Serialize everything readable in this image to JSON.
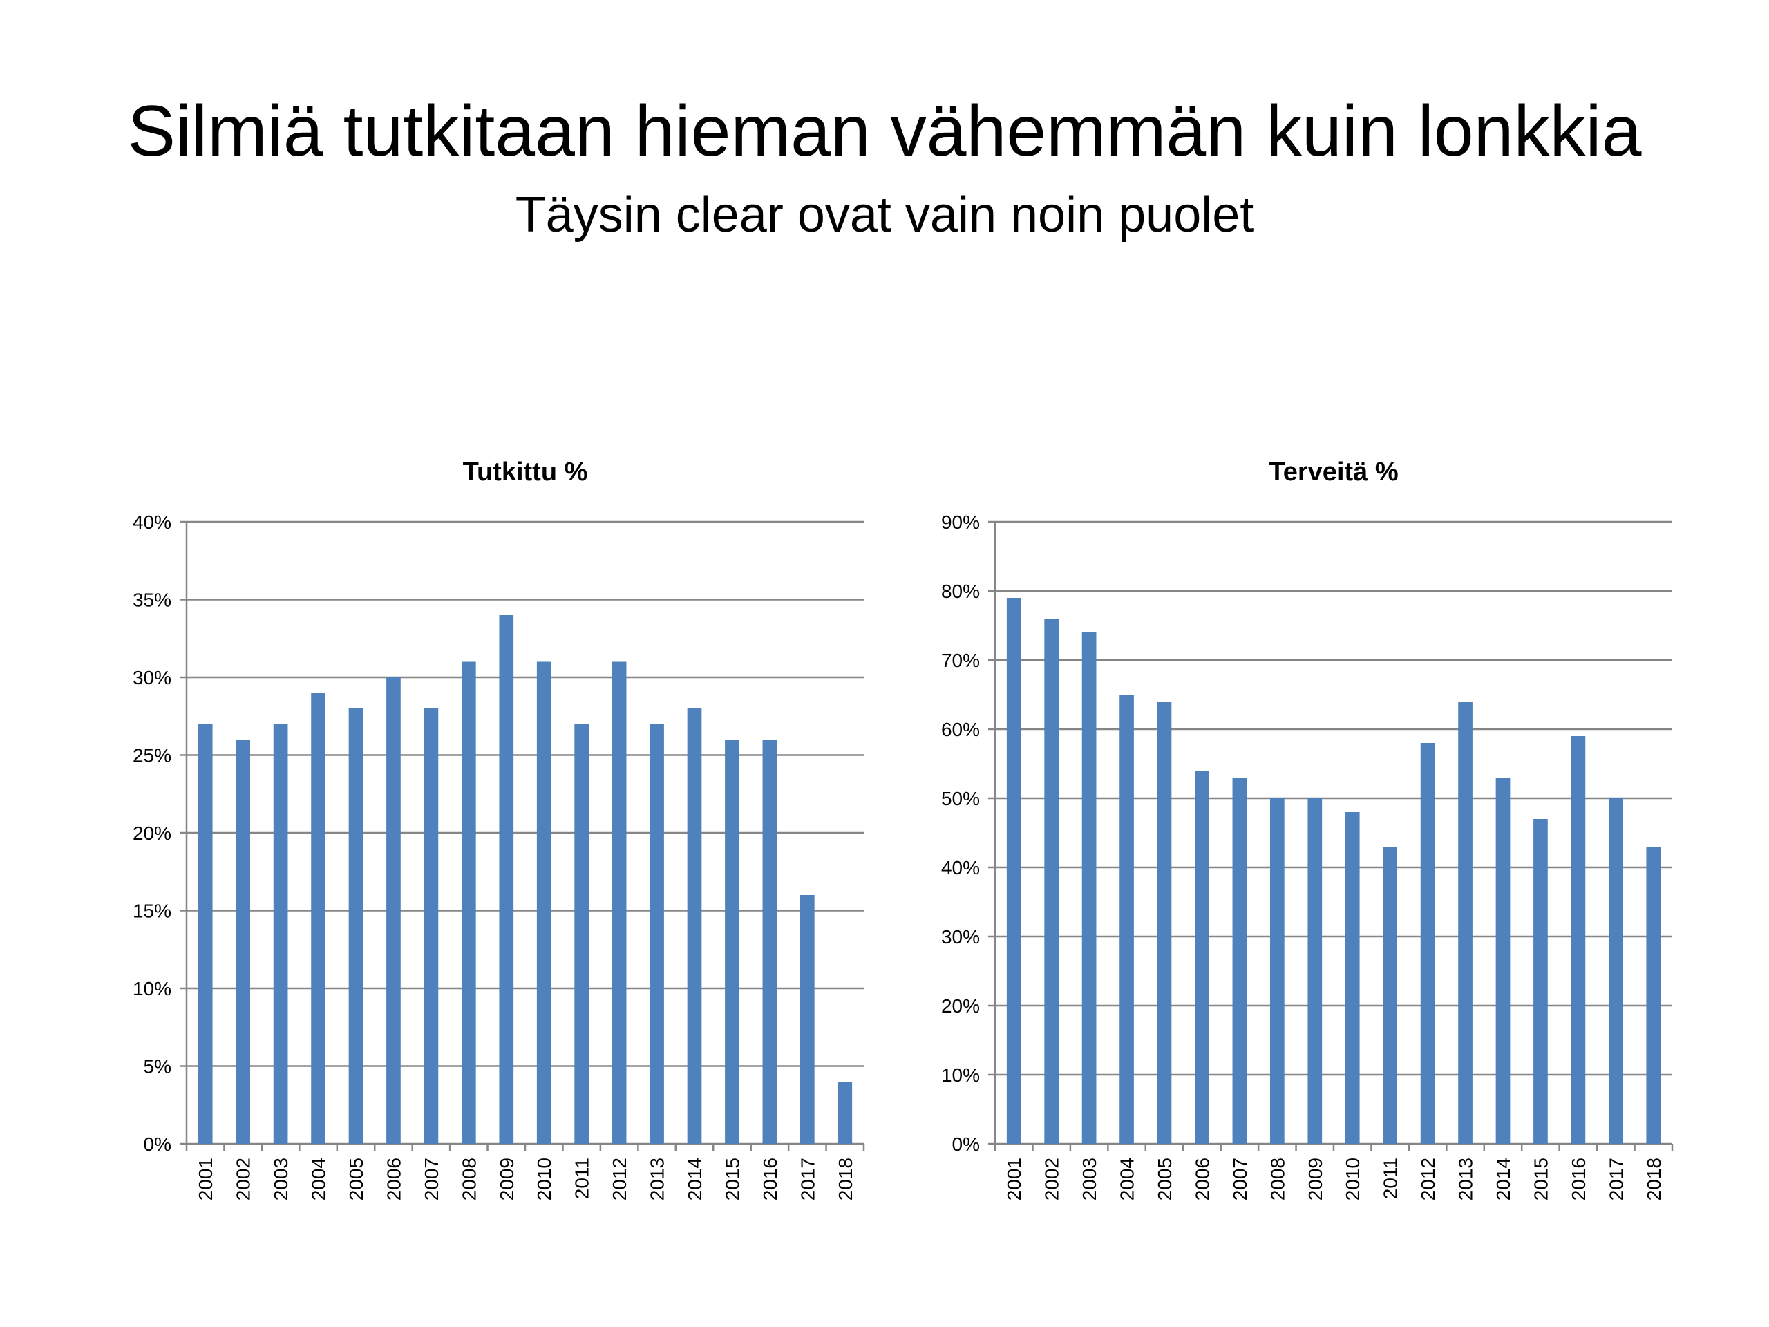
{
  "slide": {
    "title": "Silmiä tutkitaan hieman vähemmän kuin lonkkia",
    "subtitle": "Täysin clear ovat vain noin puolet"
  },
  "colors": {
    "bar": "#4F81BD",
    "grid": "#868686",
    "axis": "#868686",
    "text": "#000000"
  },
  "chart_data": [
    {
      "type": "bar",
      "title": "Tutkittu %",
      "categories": [
        "2001",
        "2002",
        "2003",
        "2004",
        "2005",
        "2006",
        "2007",
        "2008",
        "2009",
        "2010",
        "2011",
        "2012",
        "2013",
        "2014",
        "2015",
        "2016",
        "2017",
        "2018"
      ],
      "values": [
        27,
        26,
        27,
        29,
        28,
        30,
        28,
        31,
        34,
        31,
        27,
        31,
        27,
        28,
        26,
        26,
        16,
        4
      ],
      "ylim": [
        0,
        40
      ],
      "yticks": [
        0,
        5,
        10,
        15,
        20,
        25,
        30,
        35,
        40
      ],
      "ytick_labels": [
        "0%",
        "5%",
        "10%",
        "15%",
        "20%",
        "25%",
        "30%",
        "35%",
        "40%"
      ],
      "xlabel": "",
      "ylabel": "",
      "grid": true,
      "legend": "none"
    },
    {
      "type": "bar",
      "title": "Terveitä %",
      "categories": [
        "2001",
        "2002",
        "2003",
        "2004",
        "2005",
        "2006",
        "2007",
        "2008",
        "2009",
        "2010",
        "2011",
        "2012",
        "2013",
        "2014",
        "2015",
        "2016",
        "2017",
        "2018"
      ],
      "values": [
        79,
        76,
        74,
        65,
        64,
        54,
        53,
        50,
        50,
        48,
        43,
        58,
        64,
        53,
        47,
        59,
        50,
        43
      ],
      "ylim": [
        0,
        90
      ],
      "yticks": [
        0,
        10,
        20,
        30,
        40,
        50,
        60,
        70,
        80,
        90
      ],
      "ytick_labels": [
        "0%",
        "10%",
        "20%",
        "30%",
        "40%",
        "50%",
        "60%",
        "70%",
        "80%",
        "90%"
      ],
      "xlabel": "",
      "ylabel": "",
      "grid": true,
      "legend": "none"
    }
  ]
}
